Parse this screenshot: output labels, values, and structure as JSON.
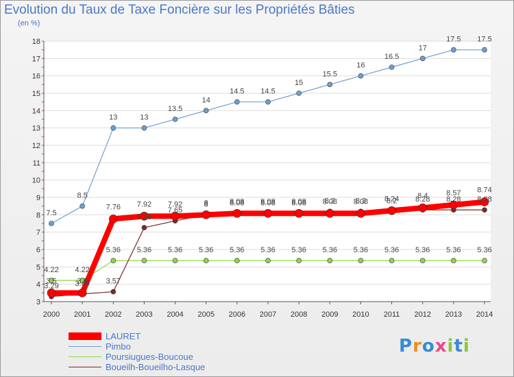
{
  "chart_data": {
    "type": "line",
    "title": "Evolution du Taux de Taxe Foncière sur les Propriétés Bâties",
    "ylabel": "(en %)",
    "xlabel": "",
    "ylim": [
      3,
      18
    ],
    "yticks": [
      "3",
      "4",
      "5",
      "6",
      "7",
      "8",
      "9",
      "10",
      "11",
      "12",
      "13",
      "14",
      "15",
      "16",
      "17",
      "18"
    ],
    "categories": [
      "2000",
      "2001",
      "2002",
      "2003",
      "2004",
      "2005",
      "2006",
      "2007",
      "2008",
      "2009",
      "2010",
      "2011",
      "2012",
      "2013",
      "2014"
    ],
    "series": [
      {
        "name": "LAURET",
        "color": "#ff0000",
        "values": [
          3.5,
          3.5,
          7.76,
          7.92,
          7.92,
          8,
          8.08,
          8.08,
          8.08,
          8.08,
          8.08,
          8.24,
          8.4,
          8.57,
          8.74
        ],
        "labels": [
          "3.5",
          "3.5",
          "7.76",
          "7.92",
          "7.92",
          "8",
          "8.08",
          "8.08",
          "8.08",
          "8.08",
          "8.08",
          "8.24",
          "8.4",
          "8.57",
          "8.74"
        ]
      },
      {
        "name": "Pimbo",
        "color": "#6e9fd2",
        "values": [
          7.5,
          8.5,
          13,
          13,
          13.5,
          14,
          14.5,
          14.5,
          15,
          15.5,
          16,
          16.5,
          17,
          17.5,
          17.5
        ],
        "labels": [
          "7.5",
          "8.5",
          "13",
          "13",
          "13.5",
          "14",
          "14.5",
          "14.5",
          "15",
          "15.5",
          "16",
          "16.5",
          "17",
          "17.5",
          "17.5"
        ]
      },
      {
        "name": "Poursiugues-Boucoue",
        "color": "#8ed64a",
        "values": [
          4.22,
          4.22,
          5.36,
          5.36,
          5.36,
          5.36,
          5.36,
          5.36,
          5.36,
          5.36,
          5.36,
          5.36,
          5.36,
          5.36,
          5.36
        ],
        "labels": [
          "4.22",
          "4.22",
          "5.36",
          "5.36",
          "5.36",
          "5.36",
          "5.36",
          "5.36",
          "5.36",
          "5.36",
          "5.36",
          "5.36",
          "5.36",
          "5.36",
          "5.36"
        ]
      },
      {
        "name": "Boueilh-Boueilho-Lasque",
        "color": "#7a2a2a",
        "values": [
          3.29,
          3.44,
          3.57,
          7.26,
          7.65,
          8,
          8.08,
          8.08,
          8.08,
          8.2,
          8.2,
          8.2,
          8.28,
          8.28,
          8.28
        ],
        "labels": [
          "3.29",
          "3.44",
          "3.57",
          "7.26",
          "7.65",
          "8",
          "8.08",
          "8.08",
          "8.08",
          "8.2",
          "8.2",
          "8.2",
          "8.28",
          "8.28",
          "8.28"
        ]
      }
    ]
  },
  "legend": {
    "items": [
      "LAURET",
      "Pimbo",
      "Poursiugues-Boucoue",
      "Boueilh-Boueilho-Lasque"
    ]
  },
  "logo": {
    "letters": [
      "P",
      "r",
      "o",
      "x",
      "i",
      "t",
      "i"
    ],
    "colors": [
      "#3a8ad6",
      "#f08c1c",
      "#3a8ad6",
      "#e94a8a",
      "#8cc63e",
      "#3a8ad6",
      "#8cc63e"
    ]
  }
}
